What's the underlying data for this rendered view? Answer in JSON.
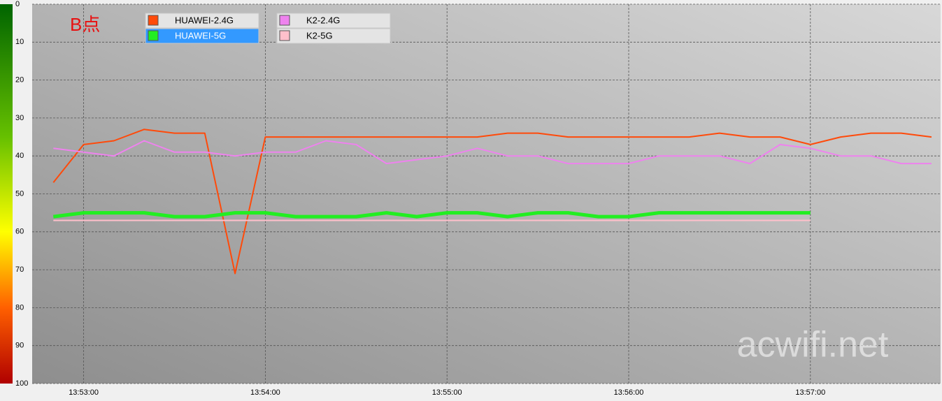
{
  "chart_data": {
    "type": "line",
    "annotation": "B点",
    "watermark": "acwifi.net",
    "x": [
      "13:52:50",
      "13:53:00",
      "13:53:10",
      "13:53:20",
      "13:53:30",
      "13:53:40",
      "13:53:50",
      "13:54:00",
      "13:54:10",
      "13:54:20",
      "13:54:30",
      "13:54:40",
      "13:54:50",
      "13:55:00",
      "13:55:10",
      "13:55:20",
      "13:55:30",
      "13:55:40",
      "13:55:50",
      "13:56:00",
      "13:56:10",
      "13:56:20",
      "13:56:30",
      "13:56:40",
      "13:56:50",
      "13:57:00",
      "13:57:10",
      "13:57:20",
      "13:57:30",
      "13:57:40"
    ],
    "xlim": [
      "13:52:43",
      "13:57:43"
    ],
    "xticks": [
      "13:53:00",
      "13:54:00",
      "13:55:00",
      "13:56:00",
      "13:57:00"
    ],
    "ylim": [
      100,
      0
    ],
    "yticks": [
      0,
      10,
      20,
      30,
      40,
      50,
      60,
      70,
      80,
      90,
      100
    ],
    "grid": true,
    "legend_highlight": 1,
    "series": [
      {
        "name": "HUAWEI-2.4G",
        "color": "#ff4a0a",
        "line_width": 2,
        "values": [
          47,
          37,
          36,
          33,
          34,
          34,
          71,
          35,
          35,
          35,
          35,
          35,
          35,
          35,
          35,
          34,
          34,
          35,
          35,
          35,
          35,
          35,
          34,
          35,
          35,
          37,
          35,
          34,
          34,
          35
        ]
      },
      {
        "name": "HUAWEI-5G",
        "color": "#22ee22",
        "line_width": 5,
        "values": [
          56,
          55,
          55,
          55,
          56,
          56,
          55,
          55,
          56,
          56,
          56,
          55,
          56,
          55,
          55,
          56,
          55,
          55,
          56,
          56,
          55,
          55,
          55,
          55,
          55,
          55,
          null,
          null,
          null,
          null
        ]
      },
      {
        "name": "K2-2.4G",
        "color": "#ee82ee",
        "line_width": 2,
        "values": [
          38,
          39,
          40,
          36,
          39,
          39,
          40,
          39,
          39,
          36,
          37,
          42,
          41,
          40,
          38,
          40,
          40,
          42,
          42,
          42,
          40,
          40,
          40,
          42,
          37,
          38,
          40,
          40,
          42,
          42
        ]
      },
      {
        "name": "K2-5G",
        "color": "#ffc0cb",
        "line_width": 2,
        "values": [
          57,
          57,
          57,
          57,
          57,
          57,
          57,
          57,
          57,
          57,
          57,
          57,
          57,
          57,
          57,
          57,
          57,
          57,
          57,
          57,
          57,
          57,
          57,
          57,
          57,
          57,
          null,
          null,
          null,
          null
        ]
      }
    ]
  }
}
